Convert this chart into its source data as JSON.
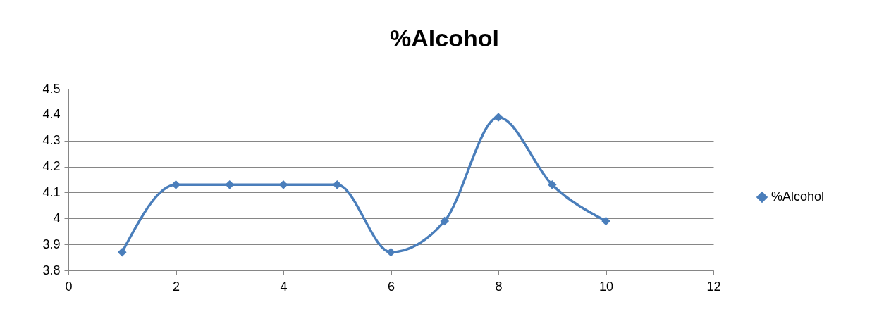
{
  "chart_data": {
    "type": "line",
    "title": "%Alcohol",
    "x": [
      1,
      2,
      3,
      4,
      5,
      6,
      7,
      8,
      9,
      10
    ],
    "series": [
      {
        "name": "%Alcohol",
        "color": "#4a7ebb",
        "values": [
          3.87,
          4.13,
          4.13,
          4.13,
          4.13,
          3.87,
          3.99,
          4.39,
          4.13,
          3.99
        ]
      }
    ],
    "xlim": [
      0,
      12
    ],
    "xticks": [
      0,
      2,
      4,
      6,
      8,
      10,
      12
    ],
    "ylim": [
      3.8,
      4.5
    ],
    "yticks": [
      3.8,
      3.9,
      4,
      4.1,
      4.2,
      4.3,
      4.4,
      4.5
    ],
    "grid": "y",
    "legend": "right",
    "marker": "diamond",
    "line_style": "solid"
  }
}
